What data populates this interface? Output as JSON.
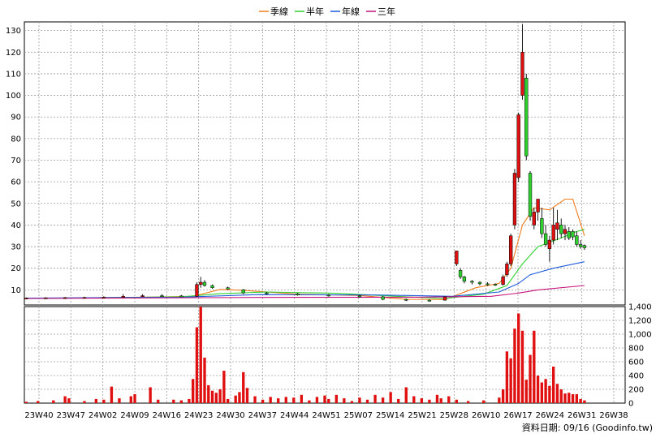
{
  "legend": [
    {
      "label": "季線",
      "color": "#f07d1e"
    },
    {
      "label": "半年",
      "color": "#2fd12f"
    },
    {
      "label": "年線",
      "color": "#1e5adc"
    },
    {
      "label": "三年",
      "color": "#c8147a"
    }
  ],
  "footer": {
    "text": "資料日期: 09/16  (Goodinfo.tw)"
  },
  "chart_data": [
    {
      "type": "candlestick",
      "title": "",
      "ylim": [
        3,
        134
      ],
      "yticks": [
        10,
        20,
        30,
        40,
        50,
        60,
        70,
        80,
        90,
        100,
        110,
        120,
        130
      ],
      "x_count": 155,
      "xtick_labels": [
        "23W40",
        "23W47",
        "24W02",
        "24W09",
        "24W16",
        "24W23",
        "24W30",
        "24W37",
        "24W44",
        "24W51",
        "25W07",
        "25W14",
        "25W21",
        "25W28",
        "26W10",
        "26W17",
        "26W24",
        "26W31",
        "26W38"
      ],
      "candles": [
        {
          "i": 0,
          "o": 6,
          "h": 6.5,
          "l": 5.8,
          "c": 6.2
        },
        {
          "i": 5,
          "o": 6.2,
          "h": 6.6,
          "l": 6,
          "c": 6.3
        },
        {
          "i": 10,
          "o": 6.3,
          "h": 6.7,
          "l": 6.1,
          "c": 6.4
        },
        {
          "i": 15,
          "o": 6.4,
          "h": 6.8,
          "l": 6.2,
          "c": 6.5
        },
        {
          "i": 20,
          "o": 6.5,
          "h": 7,
          "l": 6.3,
          "c": 6.6
        },
        {
          "i": 25,
          "o": 6.6,
          "h": 8,
          "l": 6.4,
          "c": 7
        },
        {
          "i": 30,
          "o": 7,
          "h": 8,
          "l": 6.8,
          "c": 7.3
        },
        {
          "i": 35,
          "o": 7.3,
          "h": 8,
          "l": 6.9,
          "c": 7.2
        },
        {
          "i": 40,
          "o": 7.2,
          "h": 7.6,
          "l": 6.8,
          "c": 7
        },
        {
          "i": 44,
          "o": 7,
          "h": 13.5,
          "l": 6.8,
          "c": 12.5
        },
        {
          "i": 45,
          "o": 12.5,
          "h": 16,
          "l": 11,
          "c": 13.5
        },
        {
          "i": 46,
          "o": 13.5,
          "h": 14.5,
          "l": 11.5,
          "c": 12
        },
        {
          "i": 48,
          "o": 12,
          "h": 12.5,
          "l": 10.5,
          "c": 11
        },
        {
          "i": 52,
          "o": 11,
          "h": 11.5,
          "l": 10,
          "c": 10.4
        },
        {
          "i": 56,
          "o": 10,
          "h": 10.4,
          "l": 8,
          "c": 8.6
        },
        {
          "i": 62,
          "o": 8.6,
          "h": 9,
          "l": 7.8,
          "c": 8.2
        },
        {
          "i": 70,
          "o": 8.2,
          "h": 8.6,
          "l": 7.3,
          "c": 7.6
        },
        {
          "i": 78,
          "o": 7.6,
          "h": 8,
          "l": 6.9,
          "c": 7.2
        },
        {
          "i": 86,
          "o": 7.2,
          "h": 7.6,
          "l": 6.4,
          "c": 6.8
        },
        {
          "i": 92,
          "o": 6.8,
          "h": 7.1,
          "l": 5.2,
          "c": 5.6
        },
        {
          "i": 98,
          "o": 5.6,
          "h": 6,
          "l": 4.8,
          "c": 5.2
        },
        {
          "i": 104,
          "o": 5.2,
          "h": 5.6,
          "l": 4.6,
          "c": 5
        },
        {
          "i": 108,
          "o": 5.2,
          "h": 7,
          "l": 5,
          "c": 6.8
        },
        {
          "i": 111,
          "o": 22,
          "h": 28,
          "l": 21,
          "c": 28
        },
        {
          "i": 112,
          "o": 19,
          "h": 20,
          "l": 15,
          "c": 16
        },
        {
          "i": 113,
          "o": 16,
          "h": 16.5,
          "l": 13,
          "c": 14
        },
        {
          "i": 115,
          "o": 14,
          "h": 14.5,
          "l": 12.5,
          "c": 13.5
        },
        {
          "i": 117,
          "o": 13.5,
          "h": 14,
          "l": 12,
          "c": 12.8
        },
        {
          "i": 119,
          "o": 12.8,
          "h": 13.5,
          "l": 11.8,
          "c": 12.6
        },
        {
          "i": 121,
          "o": 12.6,
          "h": 13,
          "l": 11.8,
          "c": 12.5
        },
        {
          "i": 123,
          "o": 12.5,
          "h": 17,
          "l": 12,
          "c": 16
        },
        {
          "i": 124,
          "o": 17,
          "h": 23,
          "l": 16,
          "c": 22
        },
        {
          "i": 125,
          "o": 22,
          "h": 36,
          "l": 21,
          "c": 35
        },
        {
          "i": 126,
          "o": 40,
          "h": 66,
          "l": 38,
          "c": 64
        },
        {
          "i": 127,
          "o": 62,
          "h": 92,
          "l": 60,
          "c": 91
        },
        {
          "i": 128,
          "o": 100,
          "h": 133,
          "l": 98,
          "c": 120
        },
        {
          "i": 129,
          "o": 108,
          "h": 110,
          "l": 70,
          "c": 72
        },
        {
          "i": 130,
          "o": 64,
          "h": 65,
          "l": 42,
          "c": 44
        },
        {
          "i": 131,
          "o": 40,
          "h": 48,
          "l": 38,
          "c": 46
        },
        {
          "i": 132,
          "o": 46,
          "h": 52,
          "l": 42,
          "c": 52
        },
        {
          "i": 133,
          "o": 43,
          "h": 48,
          "l": 34,
          "c": 36
        },
        {
          "i": 134,
          "o": 36,
          "h": 40,
          "l": 30,
          "c": 31
        },
        {
          "i": 135,
          "o": 29,
          "h": 35,
          "l": 23,
          "c": 33
        },
        {
          "i": 136,
          "o": 33,
          "h": 48,
          "l": 31,
          "c": 40
        },
        {
          "i": 137,
          "o": 38,
          "h": 47,
          "l": 33,
          "c": 41
        },
        {
          "i": 138,
          "o": 40,
          "h": 43,
          "l": 34,
          "c": 36
        },
        {
          "i": 139,
          "o": 36,
          "h": 40,
          "l": 33,
          "c": 38
        },
        {
          "i": 140,
          "o": 37,
          "h": 39,
          "l": 33,
          "c": 34
        },
        {
          "i": 141,
          "o": 37,
          "h": 38,
          "l": 33,
          "c": 34.5
        },
        {
          "i": 142,
          "o": 35,
          "h": 37,
          "l": 30,
          "c": 31
        },
        {
          "i": 143,
          "o": 31,
          "h": 33,
          "l": 29,
          "c": 30
        },
        {
          "i": 144,
          "o": 30.5,
          "h": 31,
          "l": 28.5,
          "c": 29.5
        }
      ],
      "ma": [
        {
          "label": "季線",
          "color": "#f07d1e",
          "points": [
            [
              0,
              6
            ],
            [
              30,
              6.6
            ],
            [
              43,
              7
            ],
            [
              50,
              10.2
            ],
            [
              56,
              9.8
            ],
            [
              70,
              8
            ],
            [
              86,
              7.4
            ],
            [
              98,
              5.6
            ],
            [
              108,
              5.5
            ],
            [
              116,
              11
            ],
            [
              122,
              13
            ],
            [
              125,
              20
            ],
            [
              128,
              40
            ],
            [
              131,
              48
            ],
            [
              135,
              47
            ],
            [
              139,
              52
            ],
            [
              141,
              52
            ],
            [
              144,
              35
            ]
          ]
        },
        {
          "label": "半年",
          "color": "#2fd12f",
          "points": [
            [
              0,
              6
            ],
            [
              40,
              6.8
            ],
            [
              50,
              8.2
            ],
            [
              62,
              9
            ],
            [
              80,
              8.4
            ],
            [
              98,
              6.8
            ],
            [
              108,
              6
            ],
            [
              118,
              8
            ],
            [
              124,
              12
            ],
            [
              128,
              22
            ],
            [
              132,
              30
            ],
            [
              138,
              34
            ],
            [
              142,
              37
            ],
            [
              144,
              38
            ]
          ]
        },
        {
          "label": "年線",
          "color": "#1e5adc",
          "points": [
            [
              0,
              6.2
            ],
            [
              40,
              6.6
            ],
            [
              60,
              7.8
            ],
            [
              90,
              7.6
            ],
            [
              110,
              7
            ],
            [
              122,
              9
            ],
            [
              127,
              13
            ],
            [
              130,
              17
            ],
            [
              136,
              20
            ],
            [
              144,
              23
            ]
          ]
        },
        {
          "label": "三年",
          "color": "#c8147a",
          "points": [
            [
              0,
              6
            ],
            [
              60,
              6.5
            ],
            [
              100,
              6.6
            ],
            [
              120,
              7
            ],
            [
              127,
              8.5
            ],
            [
              132,
              10
            ],
            [
              144,
              12
            ]
          ]
        }
      ],
      "volume": {
        "ylim": [
          0,
          1400
        ],
        "yticks": [
          0,
          200,
          400,
          600,
          800,
          1000,
          1200,
          1400
        ],
        "color": "#e01010",
        "bars": [
          [
            0,
            20
          ],
          [
            3,
            30
          ],
          [
            7,
            40
          ],
          [
            10,
            100
          ],
          [
            11,
            70
          ],
          [
            15,
            30
          ],
          [
            18,
            60
          ],
          [
            20,
            50
          ],
          [
            22,
            240
          ],
          [
            24,
            70
          ],
          [
            27,
            100
          ],
          [
            28,
            130
          ],
          [
            32,
            230
          ],
          [
            34,
            50
          ],
          [
            38,
            50
          ],
          [
            40,
            40
          ],
          [
            42,
            60
          ],
          [
            43,
            350
          ],
          [
            44,
            1100
          ],
          [
            45,
            1400
          ],
          [
            46,
            660
          ],
          [
            47,
            260
          ],
          [
            48,
            180
          ],
          [
            49,
            150
          ],
          [
            50,
            200
          ],
          [
            51,
            470
          ],
          [
            52,
            60
          ],
          [
            54,
            110
          ],
          [
            55,
            160
          ],
          [
            56,
            450
          ],
          [
            57,
            220
          ],
          [
            59,
            100
          ],
          [
            61,
            50
          ],
          [
            63,
            90
          ],
          [
            65,
            70
          ],
          [
            67,
            90
          ],
          [
            69,
            80
          ],
          [
            71,
            120
          ],
          [
            73,
            40
          ],
          [
            75,
            90
          ],
          [
            77,
            110
          ],
          [
            78,
            60
          ],
          [
            80,
            120
          ],
          [
            82,
            70
          ],
          [
            84,
            30
          ],
          [
            86,
            80
          ],
          [
            88,
            50
          ],
          [
            90,
            120
          ],
          [
            92,
            80
          ],
          [
            94,
            160
          ],
          [
            96,
            60
          ],
          [
            98,
            230
          ],
          [
            100,
            100
          ],
          [
            102,
            70
          ],
          [
            104,
            50
          ],
          [
            106,
            120
          ],
          [
            107,
            70
          ],
          [
            109,
            100
          ],
          [
            111,
            50
          ],
          [
            114,
            30
          ],
          [
            118,
            40
          ],
          [
            122,
            80
          ],
          [
            123,
            200
          ],
          [
            124,
            750
          ],
          [
            125,
            650
          ],
          [
            126,
            1080
          ],
          [
            127,
            1300
          ],
          [
            128,
            1050
          ],
          [
            129,
            340
          ],
          [
            130,
            700
          ],
          [
            131,
            1050
          ],
          [
            132,
            400
          ],
          [
            133,
            300
          ],
          [
            134,
            350
          ],
          [
            135,
            250
          ],
          [
            136,
            530
          ],
          [
            137,
            280
          ],
          [
            138,
            200
          ],
          [
            139,
            140
          ],
          [
            140,
            150
          ],
          [
            141,
            130
          ],
          [
            142,
            130
          ],
          [
            143,
            60
          ],
          [
            144,
            40
          ]
        ]
      }
    }
  ]
}
